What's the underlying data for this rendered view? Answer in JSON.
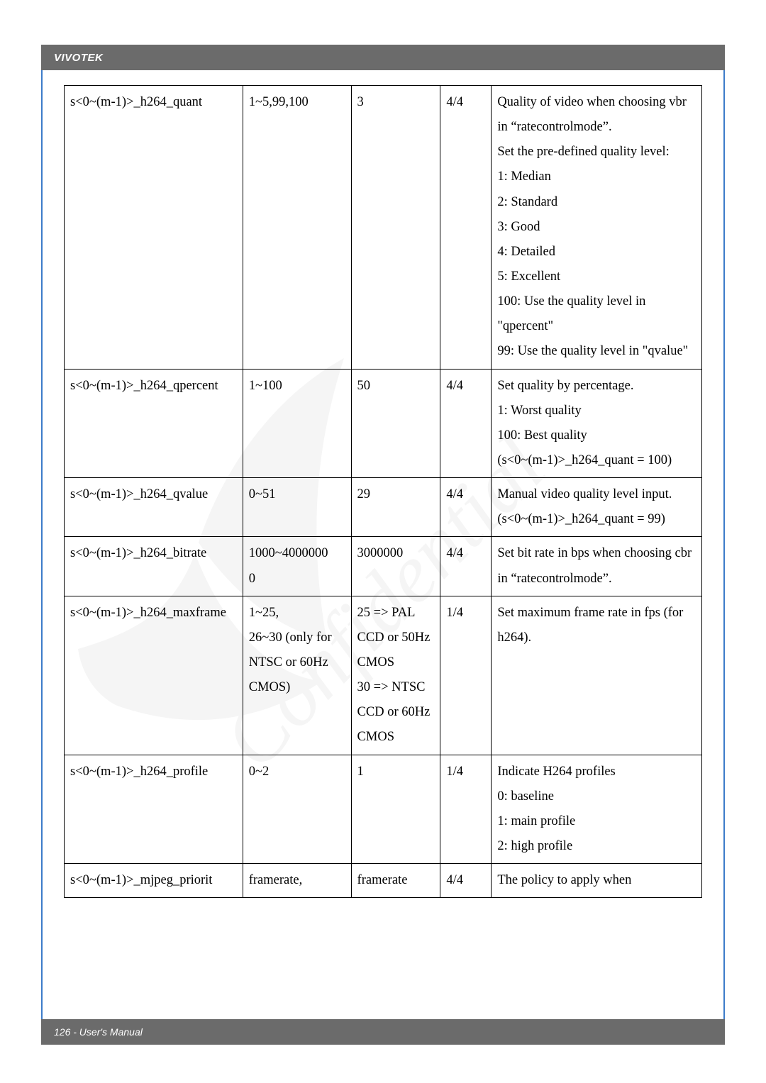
{
  "header": {
    "brand": "VIVOTEK"
  },
  "footer": {
    "text": "126 - User's Manual"
  },
  "table": {
    "col_widths_pct": [
      28,
      17,
      14,
      8,
      33
    ],
    "border_color": "#000000",
    "font_family": "Times New Roman",
    "font_size_pt": 14,
    "line_height": 1.9,
    "rows": [
      {
        "param": "s<0~(m-1)>_h264_quant",
        "range": "1~5,99,100",
        "default": "3",
        "sec": "4/4",
        "desc": "Quality of video when choosing vbr in \"ratecontrolmode\".\nSet the pre-defined quality level:\n1: Median\n2: Standard\n3: Good\n4: Detailed\n5: Excellent\n100: Use the quality level in \"qpercent\"\n99: Use the quality level in \"qvalue\""
      },
      {
        "param": "s<0~(m-1)>_h264_qpercent",
        "range": "1~100",
        "default": "50",
        "sec": "4/4",
        "desc": "Set quality by percentage.\n1: Worst quality\n100: Best quality\n(s<0~(m-1)>_h264_quant = 100)"
      },
      {
        "param": "s<0~(m-1)>_h264_qvalue",
        "range": "0~51",
        "default": "29",
        "sec": "4/4",
        "desc": "Manual video quality level input.\n(s<0~(m-1)>_h264_quant = 99)"
      },
      {
        "param": "s<0~(m-1)>_h264_bitrate",
        "range": "1000~4000000\n0",
        "default": "3000000",
        "sec": "4/4",
        "desc": "Set bit rate in bps when choosing cbr in \"ratecontrolmode\"."
      },
      {
        "param": "s<0~(m-1)>_h264_maxframe",
        "range": "1~25,\n26~30 (only for NTSC or 60Hz CMOS)",
        "default": "25 => PAL CCD or 50Hz CMOS\n30 => NTSC CCD or 60Hz CMOS",
        "sec": "1/4",
        "desc": "Set maximum frame rate in fps (for h264)."
      },
      {
        "param": "s<0~(m-1)>_h264_profile",
        "range": "0~2",
        "default": "1",
        "sec": "1/4",
        "desc": "Indicate H264 profiles\n0: baseline\n1: main profile\n2: high profile"
      },
      {
        "param": "s<0~(m-1)>_mjpeg_priorit",
        "range": "framerate,",
        "default": "framerate",
        "sec": "4/4",
        "desc": "The policy to apply when"
      }
    ]
  },
  "watermark": {
    "text": "VIVOTEK Confidential",
    "color": "#cccccc",
    "opacity": 0.14
  }
}
